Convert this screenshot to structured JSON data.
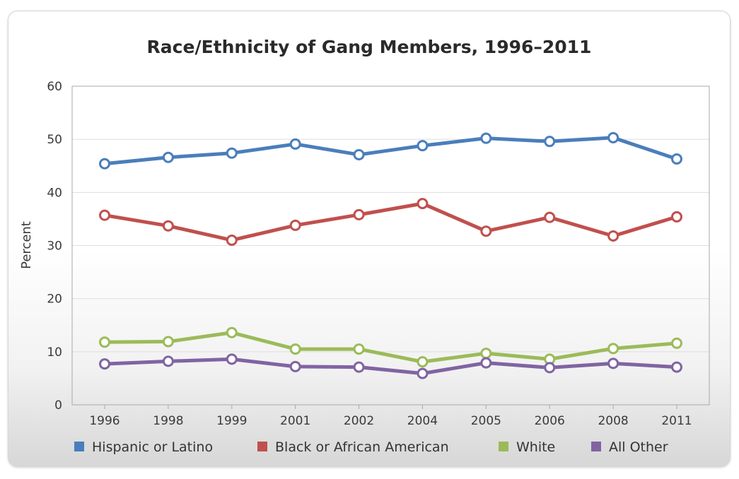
{
  "chart_data": {
    "type": "line",
    "title": "Race/Ethnicity of Gang Members, 1996–2011",
    "xlabel": "",
    "ylabel": "Percent",
    "ylim": [
      0,
      60
    ],
    "yticks": [
      "0",
      "10",
      "20",
      "30",
      "40",
      "50",
      "60"
    ],
    "categories": [
      "1996",
      "1998",
      "1999",
      "2001",
      "2002",
      "2004",
      "2005",
      "2006",
      "2008",
      "2011"
    ],
    "grid": true,
    "legend_position": "bottom",
    "series": [
      {
        "name": "Hispanic or Latino",
        "color": "#4a7ebb",
        "values": [
          45.4,
          46.6,
          47.4,
          49.1,
          47.1,
          48.8,
          50.2,
          49.6,
          50.3,
          46.3
        ]
      },
      {
        "name": "Black or African American",
        "color": "#c0504d",
        "values": [
          35.7,
          33.7,
          31.0,
          33.8,
          35.8,
          37.9,
          32.7,
          35.3,
          31.8,
          35.4
        ]
      },
      {
        "name": "White",
        "color": "#9bbb59",
        "values": [
          11.8,
          11.9,
          13.6,
          10.5,
          10.5,
          8.1,
          9.7,
          8.6,
          10.6,
          11.6
        ]
      },
      {
        "name": "All Other",
        "color": "#8064a2",
        "values": [
          7.7,
          8.2,
          8.6,
          7.2,
          7.1,
          5.9,
          7.9,
          7.0,
          7.8,
          7.1
        ]
      }
    ]
  }
}
